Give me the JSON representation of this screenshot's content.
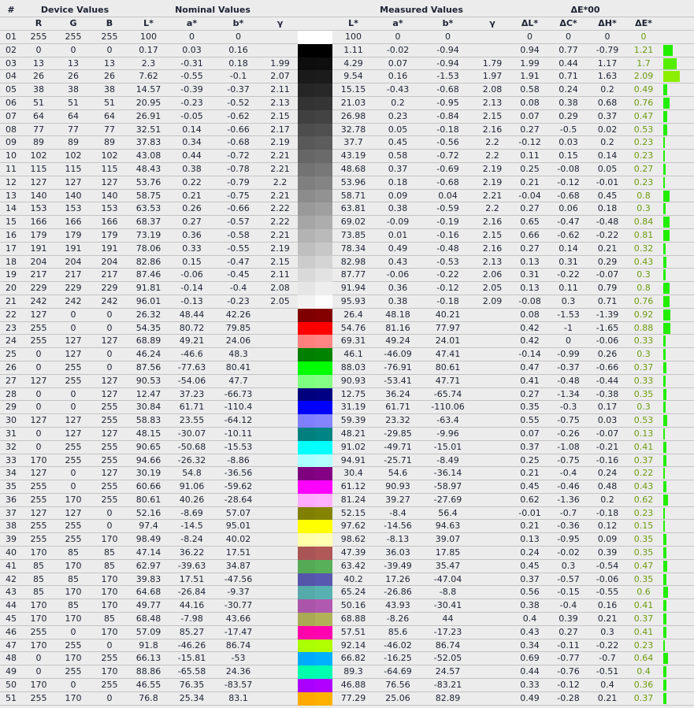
{
  "header": {
    "index": "#",
    "device_values": "Device Values",
    "nominal_values": "Nominal Values",
    "measured_values": "Measured Values",
    "delta_e": "ΔE*00",
    "columns": [
      "R",
      "G",
      "B",
      "L*",
      "a*",
      "b*",
      "γ",
      "L*",
      "a*",
      "b*",
      "γ",
      "ΔL*",
      "ΔC*",
      "ΔH*",
      "ΔE*"
    ]
  },
  "colors": {
    "text": "#1c2233",
    "delta_e_text": "#6f9a12",
    "bar_low": "#22ee00",
    "bar_high": "#8cee00",
    "background": "#ececec"
  },
  "rows": [
    [
      "01",
      "255",
      "255",
      "255",
      "100",
      "0",
      "0",
      "",
      "100",
      "0",
      "0",
      "",
      "0",
      "0",
      "0",
      "0"
    ],
    [
      "02",
      "0",
      "0",
      "0",
      "0.17",
      "0.03",
      "0.16",
      "",
      "1.11",
      "-0.02",
      "-0.94",
      "",
      "0.94",
      "0.77",
      "-0.79",
      "1.21"
    ],
    [
      "03",
      "13",
      "13",
      "13",
      "2.3",
      "-0.31",
      "0.18",
      "1.99",
      "4.29",
      "0.07",
      "-0.94",
      "1.79",
      "1.99",
      "0.44",
      "1.17",
      "1.7"
    ],
    [
      "04",
      "26",
      "26",
      "26",
      "7.62",
      "-0.55",
      "-0.1",
      "2.07",
      "9.54",
      "0.16",
      "-1.53",
      "1.97",
      "1.91",
      "0.71",
      "1.63",
      "2.09"
    ],
    [
      "05",
      "38",
      "38",
      "38",
      "14.57",
      "-0.39",
      "-0.37",
      "2.11",
      "15.15",
      "-0.43",
      "-0.68",
      "2.08",
      "0.58",
      "0.24",
      "0.2",
      "0.49"
    ],
    [
      "06",
      "51",
      "51",
      "51",
      "20.95",
      "-0.23",
      "-0.52",
      "2.13",
      "21.03",
      "0.2",
      "-0.95",
      "2.13",
      "0.08",
      "0.38",
      "0.68",
      "0.76"
    ],
    [
      "07",
      "64",
      "64",
      "64",
      "26.91",
      "-0.05",
      "-0.62",
      "2.15",
      "26.98",
      "0.23",
      "-0.84",
      "2.15",
      "0.07",
      "0.29",
      "0.37",
      "0.47"
    ],
    [
      "08",
      "77",
      "77",
      "77",
      "32.51",
      "0.14",
      "-0.66",
      "2.17",
      "32.78",
      "0.05",
      "-0.18",
      "2.16",
      "0.27",
      "-0.5",
      "0.02",
      "0.53"
    ],
    [
      "09",
      "89",
      "89",
      "89",
      "37.83",
      "0.34",
      "-0.68",
      "2.19",
      "37.7",
      "0.45",
      "-0.56",
      "2.2",
      "-0.12",
      "0.03",
      "0.2",
      "0.23"
    ],
    [
      "10",
      "102",
      "102",
      "102",
      "43.08",
      "0.44",
      "-0.72",
      "2.21",
      "43.19",
      "0.58",
      "-0.72",
      "2.2",
      "0.11",
      "0.15",
      "0.14",
      "0.23"
    ],
    [
      "11",
      "115",
      "115",
      "115",
      "48.43",
      "0.38",
      "-0.78",
      "2.21",
      "48.68",
      "0.37",
      "-0.69",
      "2.19",
      "0.25",
      "-0.08",
      "0.05",
      "0.27"
    ],
    [
      "12",
      "127",
      "127",
      "127",
      "53.76",
      "0.22",
      "-0.79",
      "2.2",
      "53.96",
      "0.18",
      "-0.68",
      "2.19",
      "0.21",
      "-0.12",
      "-0.01",
      "0.23"
    ],
    [
      "13",
      "140",
      "140",
      "140",
      "58.75",
      "0.21",
      "-0.75",
      "2.21",
      "58.71",
      "0.09",
      "0.04",
      "2.21",
      "-0.04",
      "-0.68",
      "0.45",
      "0.8"
    ],
    [
      "14",
      "153",
      "153",
      "153",
      "63.53",
      "0.26",
      "-0.66",
      "2.22",
      "63.81",
      "0.38",
      "-0.59",
      "2.2",
      "0.27",
      "0.06",
      "0.18",
      "0.3"
    ],
    [
      "15",
      "166",
      "166",
      "166",
      "68.37",
      "0.27",
      "-0.57",
      "2.22",
      "69.02",
      "-0.09",
      "-0.19",
      "2.16",
      "0.65",
      "-0.47",
      "-0.48",
      "0.84"
    ],
    [
      "16",
      "179",
      "179",
      "179",
      "73.19",
      "0.36",
      "-0.58",
      "2.21",
      "73.85",
      "0.01",
      "-0.16",
      "2.15",
      "0.66",
      "-0.62",
      "-0.22",
      "0.81"
    ],
    [
      "17",
      "191",
      "191",
      "191",
      "78.06",
      "0.33",
      "-0.55",
      "2.19",
      "78.34",
      "0.49",
      "-0.48",
      "2.16",
      "0.27",
      "0.14",
      "0.21",
      "0.32"
    ],
    [
      "18",
      "204",
      "204",
      "204",
      "82.86",
      "0.15",
      "-0.47",
      "2.15",
      "82.98",
      "0.43",
      "-0.53",
      "2.13",
      "0.13",
      "0.31",
      "0.29",
      "0.43"
    ],
    [
      "19",
      "217",
      "217",
      "217",
      "87.46",
      "-0.06",
      "-0.45",
      "2.11",
      "87.77",
      "-0.06",
      "-0.22",
      "2.06",
      "0.31",
      "-0.22",
      "-0.07",
      "0.3"
    ],
    [
      "20",
      "229",
      "229",
      "229",
      "91.81",
      "-0.14",
      "-0.4",
      "2.08",
      "91.94",
      "0.36",
      "-0.12",
      "2.05",
      "0.13",
      "0.11",
      "0.79",
      "0.8"
    ],
    [
      "21",
      "242",
      "242",
      "242",
      "96.01",
      "-0.13",
      "-0.23",
      "2.05",
      "95.93",
      "0.38",
      "-0.18",
      "2.09",
      "-0.08",
      "0.3",
      "0.71",
      "0.76"
    ],
    [
      "22",
      "127",
      "0",
      "0",
      "26.32",
      "48.44",
      "42.26",
      "",
      "26.4",
      "48.18",
      "40.21",
      "",
      "0.08",
      "-1.53",
      "-1.39",
      "0.92"
    ],
    [
      "23",
      "255",
      "0",
      "0",
      "54.35",
      "80.72",
      "79.85",
      "",
      "54.76",
      "81.16",
      "77.97",
      "",
      "0.42",
      "-1",
      "-1.65",
      "0.88"
    ],
    [
      "24",
      "255",
      "127",
      "127",
      "68.89",
      "49.21",
      "24.06",
      "",
      "69.31",
      "49.24",
      "24.01",
      "",
      "0.42",
      "0",
      "-0.06",
      "0.33"
    ],
    [
      "25",
      "0",
      "127",
      "0",
      "46.24",
      "-46.6",
      "48.3",
      "",
      "46.1",
      "-46.09",
      "47.41",
      "",
      "-0.14",
      "-0.99",
      "0.26",
      "0.3"
    ],
    [
      "26",
      "0",
      "255",
      "0",
      "87.56",
      "-77.63",
      "80.41",
      "",
      "88.03",
      "-76.91",
      "80.61",
      "",
      "0.47",
      "-0.37",
      "-0.66",
      "0.37"
    ],
    [
      "27",
      "127",
      "255",
      "127",
      "90.53",
      "-54.06",
      "47.7",
      "",
      "90.93",
      "-53.41",
      "47.71",
      "",
      "0.41",
      "-0.48",
      "-0.44",
      "0.33"
    ],
    [
      "28",
      "0",
      "0",
      "127",
      "12.47",
      "37.23",
      "-66.73",
      "",
      "12.75",
      "36.24",
      "-65.74",
      "",
      "0.27",
      "-1.34",
      "-0.38",
      "0.35"
    ],
    [
      "29",
      "0",
      "0",
      "255",
      "30.84",
      "61.71",
      "-110.4",
      "",
      "31.19",
      "61.71",
      "-110.06",
      "",
      "0.35",
      "-0.3",
      "0.17",
      "0.3"
    ],
    [
      "30",
      "127",
      "127",
      "255",
      "58.83",
      "23.55",
      "-64.12",
      "",
      "59.39",
      "23.32",
      "-63.4",
      "",
      "0.55",
      "-0.75",
      "0.03",
      "0.53"
    ],
    [
      "31",
      "0",
      "127",
      "127",
      "48.15",
      "-30.07",
      "-10.11",
      "",
      "48.21",
      "-29.85",
      "-9.96",
      "",
      "0.07",
      "-0.26",
      "-0.07",
      "0.13"
    ],
    [
      "32",
      "0",
      "255",
      "255",
      "90.65",
      "-50.68",
      "-15.53",
      "",
      "91.02",
      "-49.71",
      "-15.01",
      "",
      "0.37",
      "-1.08",
      "-0.21",
      "0.41"
    ],
    [
      "33",
      "170",
      "255",
      "255",
      "94.66",
      "-26.32",
      "-8.86",
      "",
      "94.91",
      "-25.71",
      "-8.49",
      "",
      "0.25",
      "-0.75",
      "-0.16",
      "0.37"
    ],
    [
      "34",
      "127",
      "0",
      "127",
      "30.19",
      "54.8",
      "-36.56",
      "",
      "30.4",
      "54.6",
      "-36.14",
      "",
      "0.21",
      "-0.4",
      "0.24",
      "0.22"
    ],
    [
      "35",
      "255",
      "0",
      "255",
      "60.66",
      "91.06",
      "-59.62",
      "",
      "61.12",
      "90.93",
      "-58.97",
      "",
      "0.45",
      "-0.46",
      "0.48",
      "0.43"
    ],
    [
      "36",
      "255",
      "170",
      "255",
      "80.61",
      "40.26",
      "-28.64",
      "",
      "81.24",
      "39.27",
      "-27.69",
      "",
      "0.62",
      "-1.36",
      "0.2",
      "0.62"
    ],
    [
      "37",
      "127",
      "127",
      "0",
      "52.16",
      "-8.69",
      "57.07",
      "",
      "52.15",
      "-8.4",
      "56.4",
      "",
      "-0.01",
      "-0.7",
      "-0.18",
      "0.23"
    ],
    [
      "38",
      "255",
      "255",
      "0",
      "97.4",
      "-14.5",
      "95.01",
      "",
      "97.62",
      "-14.56",
      "94.63",
      "",
      "0.21",
      "-0.36",
      "0.12",
      "0.15"
    ],
    [
      "39",
      "255",
      "255",
      "170",
      "98.49",
      "-8.24",
      "40.02",
      "",
      "98.62",
      "-8.13",
      "39.07",
      "",
      "0.13",
      "-0.95",
      "0.09",
      "0.35"
    ],
    [
      "40",
      "170",
      "85",
      "85",
      "47.14",
      "36.22",
      "17.51",
      "",
      "47.39",
      "36.03",
      "17.85",
      "",
      "0.24",
      "-0.02",
      "0.39",
      "0.35"
    ],
    [
      "41",
      "85",
      "170",
      "85",
      "62.97",
      "-39.63",
      "34.87",
      "",
      "63.42",
      "-39.49",
      "35.47",
      "",
      "0.45",
      "0.3",
      "-0.54",
      "0.47"
    ],
    [
      "42",
      "85",
      "85",
      "170",
      "39.83",
      "17.51",
      "-47.56",
      "",
      "40.2",
      "17.26",
      "-47.04",
      "",
      "0.37",
      "-0.57",
      "-0.06",
      "0.35"
    ],
    [
      "43",
      "85",
      "170",
      "170",
      "64.68",
      "-26.84",
      "-9.37",
      "",
      "65.24",
      "-26.86",
      "-8.8",
      "",
      "0.56",
      "-0.15",
      "-0.55",
      "0.6"
    ],
    [
      "44",
      "170",
      "85",
      "170",
      "49.77",
      "44.16",
      "-30.77",
      "",
      "50.16",
      "43.93",
      "-30.41",
      "",
      "0.38",
      "-0.4",
      "0.16",
      "0.41"
    ],
    [
      "45",
      "170",
      "170",
      "85",
      "68.48",
      "-7.98",
      "43.66",
      "",
      "68.88",
      "-8.26",
      "44",
      "",
      "0.4",
      "0.39",
      "0.21",
      "0.37"
    ],
    [
      "46",
      "255",
      "0",
      "170",
      "57.09",
      "85.27",
      "-17.47",
      "",
      "57.51",
      "85.6",
      "-17.23",
      "",
      "0.43",
      "0.27",
      "0.3",
      "0.41"
    ],
    [
      "47",
      "170",
      "255",
      "0",
      "91.8",
      "-46.26",
      "86.74",
      "",
      "92.14",
      "-46.02",
      "86.74",
      "",
      "0.34",
      "-0.11",
      "-0.22",
      "0.23"
    ],
    [
      "48",
      "0",
      "170",
      "255",
      "66.13",
      "-15.81",
      "-53",
      "",
      "66.82",
      "-16.25",
      "-52.05",
      "",
      "0.69",
      "-0.77",
      "-0.7",
      "0.64"
    ],
    [
      "49",
      "0",
      "255",
      "170",
      "88.86",
      "-65.58",
      "24.36",
      "",
      "89.3",
      "-64.69",
      "24.57",
      "",
      "0.44",
      "-0.76",
      "-0.51",
      "0.4"
    ],
    [
      "50",
      "170",
      "0",
      "255",
      "46.55",
      "76.35",
      "-83.57",
      "",
      "46.88",
      "76.56",
      "-83.21",
      "",
      "0.33",
      "-0.12",
      "0.4",
      "0.36"
    ],
    [
      "51",
      "255",
      "170",
      "0",
      "76.8",
      "25.34",
      "83.1",
      "",
      "77.29",
      "25.06",
      "82.89",
      "",
      "0.49",
      "-0.28",
      "0.21",
      "0.37"
    ]
  ]
}
